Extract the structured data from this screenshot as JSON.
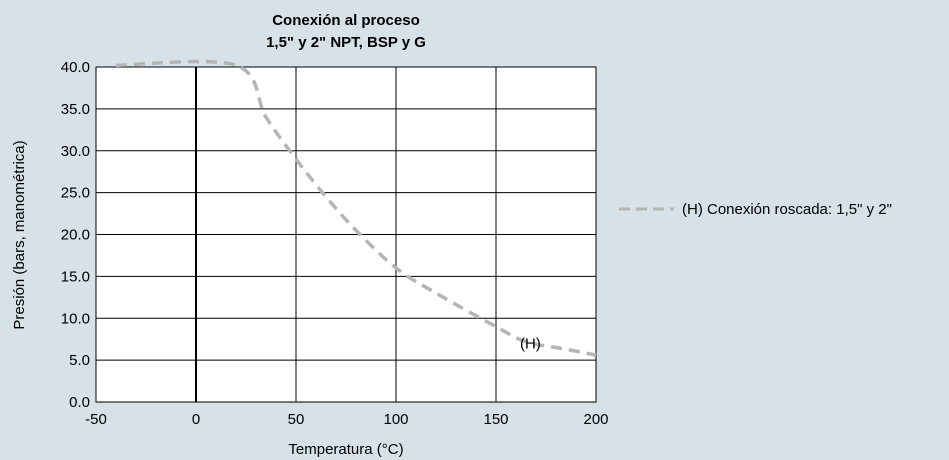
{
  "chart_data": {
    "type": "line",
    "title": "Conexión al proceso",
    "subtitle": "1,5\" y 2\" NPT, BSP y G",
    "xlabel": "Temperatura (°C)",
    "ylabel": "Presión (bars, manométrica)",
    "xlim": [
      -50,
      200
    ],
    "ylim": [
      0,
      40
    ],
    "x_ticks": [
      -50,
      0,
      50,
      100,
      150,
      200
    ],
    "x_tick_labels": [
      "-50",
      "0",
      "50",
      "100",
      "150",
      "200"
    ],
    "y_ticks": [
      0,
      5,
      10,
      15,
      20,
      25,
      30,
      35,
      40
    ],
    "y_tick_labels": [
      "0.0",
      "5.0",
      "10.0",
      "15.0",
      "20.0",
      "25.0",
      "30.0",
      "35.0",
      "40.0"
    ],
    "grid": true,
    "legend_position": "right",
    "series": [
      {
        "name": "(H) Conexión roscada: 1,5\" y 2\"",
        "color": "#b5b5b5",
        "line_style": "dashed",
        "x": [
          -40,
          20,
          35,
          50,
          65,
          80,
          100,
          120,
          150,
          165,
          185,
          200
        ],
        "y": [
          40.2,
          40.2,
          34,
          29,
          24.5,
          20.5,
          16,
          13,
          9,
          7.2,
          6.3,
          5.6
        ]
      }
    ],
    "annotations": [
      {
        "text": "(H)",
        "x": 168,
        "y": 7
      }
    ]
  }
}
